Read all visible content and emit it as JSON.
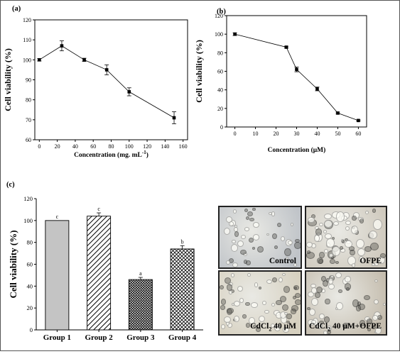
{
  "figure": {
    "panel_labels": [
      "(a)",
      "(b)",
      "(c)"
    ]
  },
  "chart_data": [
    {
      "type": "line",
      "label": "(a)",
      "x": [
        0,
        25,
        50,
        75,
        100,
        150
      ],
      "y": [
        100,
        107,
        100,
        95,
        84,
        71
      ],
      "error": [
        0.6,
        2.5,
        0.8,
        2.5,
        2.0,
        3.0
      ],
      "xlabel": "Concentration (mg. mL",
      "xlabel_sup": "-1",
      "xlabel_tail": ")",
      "ylabel": "Cell viability (%)",
      "xlim": [
        -5,
        165
      ],
      "ylim": [
        60,
        120
      ],
      "xticks": [
        0,
        20,
        40,
        60,
        80,
        100,
        120,
        140,
        160
      ],
      "yticks": [
        60,
        70,
        80,
        90,
        100,
        110,
        120
      ],
      "grid": false,
      "marker": "square"
    },
    {
      "type": "line",
      "label": "(b)",
      "x": [
        0,
        25,
        30,
        40,
        50,
        60
      ],
      "y": [
        100,
        86,
        62,
        41,
        15,
        7
      ],
      "error": [
        1.5,
        1.0,
        2.5,
        2.0,
        1.0,
        0.7
      ],
      "xlabel": "Concentration (μM)",
      "ylabel": "Cell viability (%)",
      "xlim": [
        -4,
        64
      ],
      "ylim": [
        0,
        120
      ],
      "xticks": [
        0,
        10,
        20,
        30,
        40,
        50,
        60
      ],
      "yticks": [
        0,
        20,
        40,
        60,
        80,
        100,
        120
      ],
      "grid": false,
      "marker": "square"
    },
    {
      "type": "bar",
      "label": "(c)",
      "categories": [
        "Group 1",
        "Group 2",
        "Group 3",
        "Group 4"
      ],
      "values": [
        100,
        104,
        46,
        74
      ],
      "error": [
        0,
        3,
        2,
        3
      ],
      "sig_letters": [
        "c",
        "c",
        "a",
        "b"
      ],
      "patterns": [
        "solid-gray",
        "diagonal-hatch",
        "dense-crosshatch",
        "crosshatch"
      ],
      "ylabel": "Cell viability (%)",
      "ylim": [
        0,
        120
      ],
      "yticks": [
        0,
        20,
        40,
        60,
        80,
        100,
        120
      ],
      "grid": false
    }
  ],
  "micrographs": [
    {
      "caption": "Control",
      "tone": "#bfc3c8"
    },
    {
      "caption": "OFPE",
      "tone": "#cfc9bd"
    },
    {
      "caption_main": "CdCl",
      "caption_sub": "2",
      "caption_tail": " 40 μM",
      "tone": "#d6d0bf"
    },
    {
      "caption_main": "CdCl",
      "caption_sub": "2",
      "caption_tail": " 40 μM+OFPE",
      "tone": "#c4bcad"
    }
  ]
}
